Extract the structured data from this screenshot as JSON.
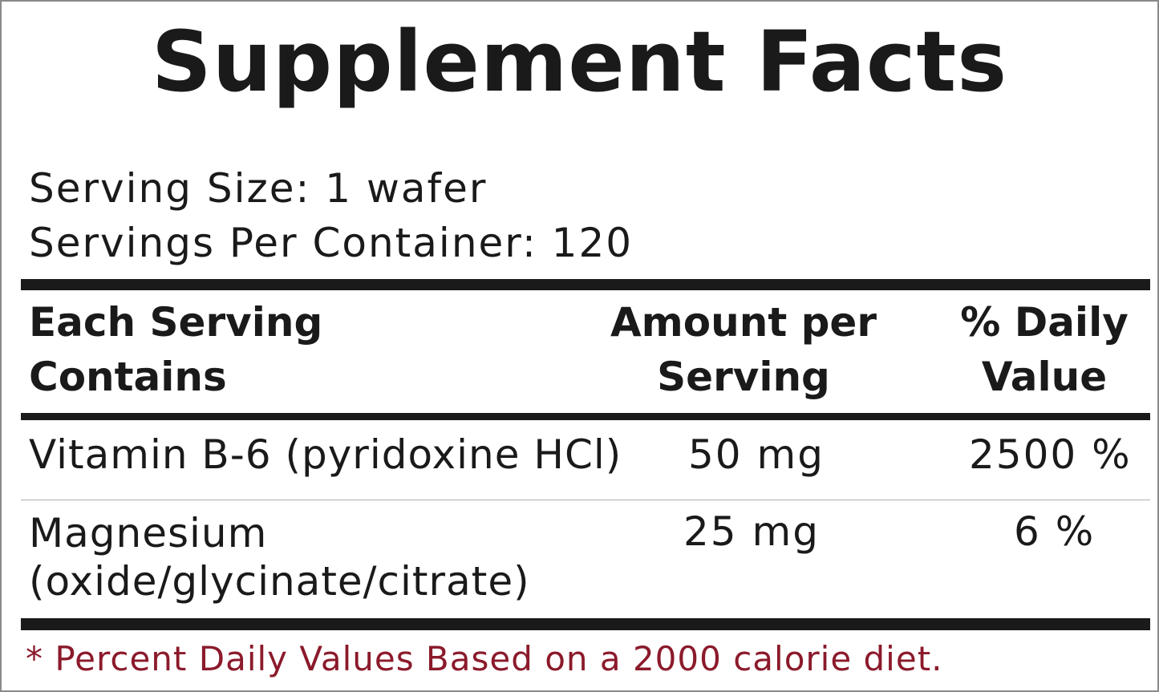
{
  "title": "Supplement Facts",
  "serving_size": "Serving Size: 1 wafer",
  "servings_per_container": "Servings Per Container: 120",
  "headers": {
    "col1_line1": "Each Serving",
    "col1_line2": "Contains",
    "col2_line1": "Amount per",
    "col2_line2": "Serving",
    "col3_line1": "% Daily",
    "col3_line2": "Value"
  },
  "rows": [
    {
      "name_line1": "Vitamin B-6 (pyridoxine HCl)",
      "name_line2": "",
      "amount": "50 mg",
      "dv": "2500 %"
    },
    {
      "name_line1": "Magnesium",
      "name_line2": "(oxide/glycinate/citrate)",
      "amount": "25 mg",
      "dv": "6 %"
    }
  ],
  "footnote": "* Percent Daily Values Based on a 2000 calorie diet.",
  "colors": {
    "text": "#1a1a1a",
    "footnote": "#8b1a2b",
    "border": "#8a8a8a"
  }
}
